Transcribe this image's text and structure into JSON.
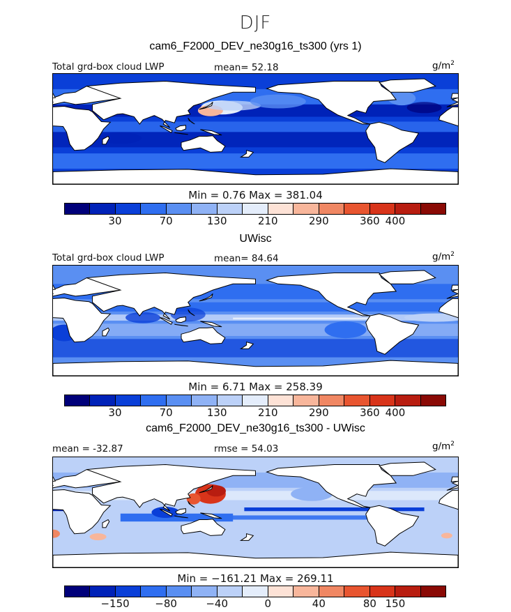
{
  "season": "DJF",
  "colors": [
    "#00007a",
    "#0022b8",
    "#0a3fd8",
    "#2f6ef0",
    "#5a8ff2",
    "#8fb2f5",
    "#bcd1f8",
    "#e4edfb",
    "#fde2d6",
    "#f8b69b",
    "#f08763",
    "#e85530",
    "#d8341a",
    "#b81d10",
    "#8a0a05"
  ],
  "panels": [
    {
      "title": "cam6_F2000_DEV_ne30g16_ts300 (yrs 1)",
      "left_label": "Total grd-box cloud LWP",
      "stat_label": "mean=  52.18",
      "unit_base": "g/m",
      "unit_exp": "2",
      "min_max": "Min =    0.76  Max = 381.04",
      "ticks": [
        "30",
        "70",
        "130",
        "210",
        "290",
        "360",
        "400"
      ],
      "field": "model"
    },
    {
      "title": "UWisc",
      "left_label": "Total grd-box cloud LWP",
      "stat_label": "mean=  84.64",
      "unit_base": "g/m",
      "unit_exp": "2",
      "min_max": "Min =    6.71  Max = 258.39",
      "ticks": [
        "30",
        "70",
        "130",
        "210",
        "290",
        "360",
        "400"
      ],
      "field": "obs"
    },
    {
      "title": "cam6_F2000_DEV_ne30g16_ts300 - UWisc",
      "left_label": "mean = -32.87",
      "stat_label": "rmse =  54.03",
      "unit_base": "g/m",
      "unit_exp": "2",
      "min_max": "Min = −161.21  Max = 269.11",
      "ticks": [
        "−150",
        "−80",
        "−40",
        "0",
        "40",
        "80",
        "150"
      ],
      "field": "diff"
    }
  ]
}
